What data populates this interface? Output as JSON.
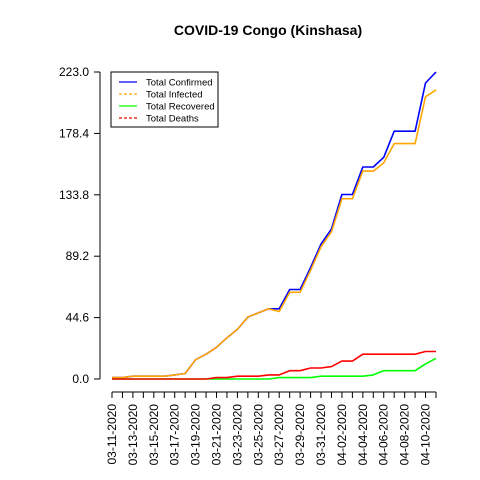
{
  "chart_data": {
    "type": "line",
    "title": "COVID-19 Congo (Kinshasa)",
    "xlabel": "",
    "ylabel": "",
    "x": [
      "03-11-2020",
      "03-12-2020",
      "03-13-2020",
      "03-14-2020",
      "03-15-2020",
      "03-16-2020",
      "03-17-2020",
      "03-18-2020",
      "03-19-2020",
      "03-20-2020",
      "03-21-2020",
      "03-22-2020",
      "03-23-2020",
      "03-24-2020",
      "03-25-2020",
      "03-26-2020",
      "03-27-2020",
      "03-28-2020",
      "03-29-2020",
      "03-30-2020",
      "03-31-2020",
      "04-01-2020",
      "04-02-2020",
      "04-03-2020",
      "04-04-2020",
      "04-05-2020",
      "04-06-2020",
      "04-07-2020",
      "04-08-2020",
      "04-09-2020",
      "04-10-2020",
      "04-11-2020"
    ],
    "x_tick_labels": [
      "03-11-2020",
      "03-13-2020",
      "03-15-2020",
      "03-17-2020",
      "03-19-2020",
      "03-21-2020",
      "03-23-2020",
      "03-25-2020",
      "03-27-2020",
      "03-29-2020",
      "03-31-2020",
      "04-02-2020",
      "04-04-2020",
      "04-06-2020",
      "04-08-2020",
      "04-10-2020"
    ],
    "y_ticks": [
      "0.0",
      "44.6",
      "89.2",
      "133.8",
      "178.4",
      "223.0"
    ],
    "ylim": [
      0,
      223
    ],
    "grid": false,
    "legend_position": "top-left",
    "series": [
      {
        "name": "Total Confirmed",
        "color": "#0000ff",
        "dash": "solid",
        "values": [
          1,
          1,
          2,
          2,
          2,
          2,
          3,
          4,
          14,
          18,
          23,
          30,
          36,
          45,
          48,
          51,
          51,
          65,
          65,
          81,
          98,
          109,
          134,
          134,
          154,
          154,
          161,
          180,
          180,
          180,
          215,
          223
        ]
      },
      {
        "name": "Total Infected",
        "color": "#ffa500",
        "dash": "dashed",
        "values": [
          1,
          1,
          2,
          2,
          2,
          2,
          3,
          4,
          14,
          18,
          23,
          30,
          36,
          45,
          48,
          51,
          49,
          63,
          63,
          79,
          96,
          107,
          131,
          131,
          151,
          151,
          157,
          171,
          171,
          171,
          205,
          210
        ]
      },
      {
        "name": "Total Recovered",
        "color": "#00ff00",
        "dash": "solid",
        "values": [
          0,
          0,
          0,
          0,
          0,
          0,
          0,
          0,
          0,
          0,
          0,
          0,
          0,
          0,
          0,
          0,
          1,
          1,
          1,
          1,
          2,
          2,
          2,
          2,
          2,
          3,
          6,
          6,
          6,
          6,
          11,
          15
        ]
      },
      {
        "name": "Total Deaths",
        "color": "#ff0000",
        "dash": "dashed",
        "values": [
          0,
          0,
          0,
          0,
          0,
          0,
          0,
          0,
          0,
          0,
          1,
          1,
          2,
          2,
          2,
          3,
          3,
          6,
          6,
          8,
          8,
          9,
          13,
          13,
          18,
          18,
          18,
          18,
          18,
          18,
          20,
          20
        ]
      }
    ]
  }
}
